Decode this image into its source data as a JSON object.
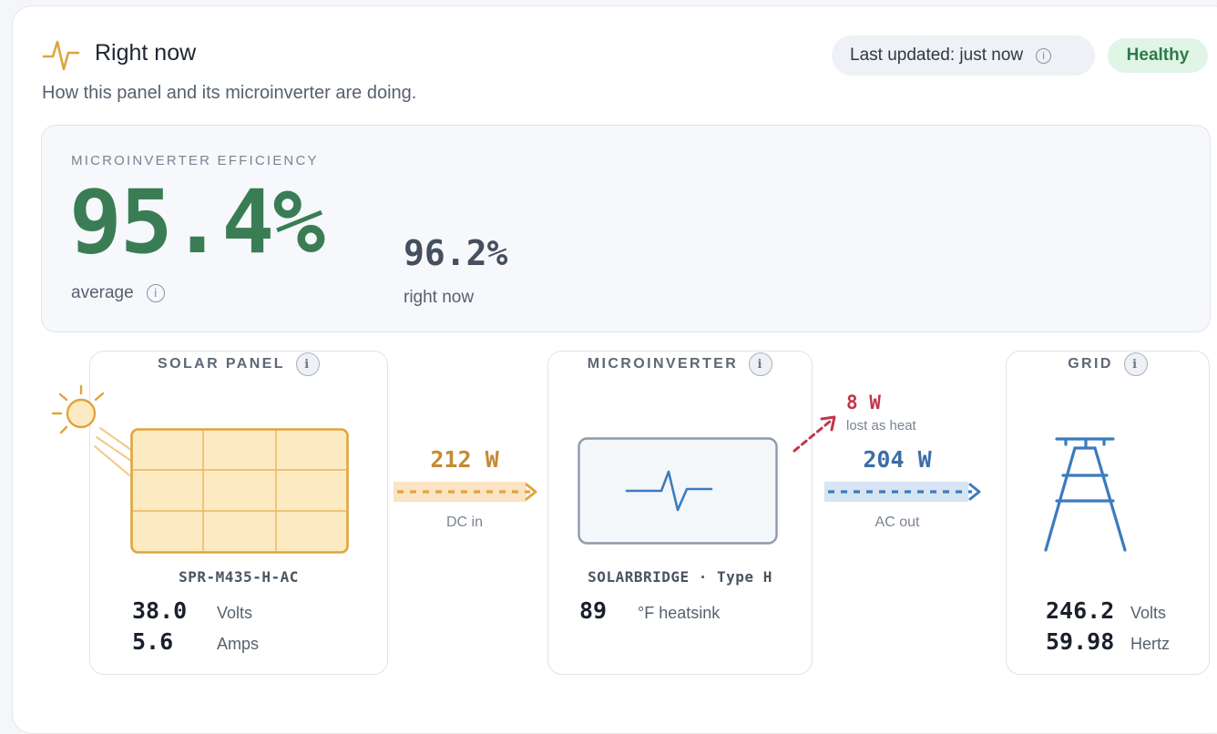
{
  "header": {
    "title": "Right now",
    "subtitle": "How this panel and its microinverter are doing.",
    "last_updated": "Last updated: just now",
    "status": "Healthy"
  },
  "efficiency": {
    "label": "MICROINVERTER EFFICIENCY",
    "average_value": "95.4%",
    "average_label": "average",
    "current_value": "96.2%",
    "current_label": "right now"
  },
  "solar_panel": {
    "title": "SOLAR PANEL",
    "model": "SPR-M435-H-AC",
    "volts_value": "38.0",
    "volts_unit": "Volts",
    "amps_value": "5.6",
    "amps_unit": "Amps"
  },
  "dc_flow": {
    "value": "212 W",
    "label": "DC in"
  },
  "microinverter": {
    "title": "MICROINVERTER",
    "model": "SOLARBRIDGE · Type H",
    "temp_value": "89",
    "temp_unit": "°F heatsink"
  },
  "heat_loss": {
    "value": "8 W",
    "label": "lost as heat"
  },
  "ac_flow": {
    "value": "204 W",
    "label": "AC out"
  },
  "grid": {
    "title": "GRID",
    "volts_value": "246.2",
    "volts_unit": "Volts",
    "hertz_value": "59.98",
    "hertz_unit": "Hertz"
  },
  "colors": {
    "healthy_green": "#3a7d55",
    "solar_orange": "#e0a43c",
    "grid_blue": "#3b7bbf",
    "heat_red": "#c0364a"
  },
  "icons": {
    "header": "pulse-icon",
    "info": "info-icon",
    "sun": "sun-icon",
    "inverter": "waveform-icon",
    "grid": "transmission-tower-icon"
  }
}
